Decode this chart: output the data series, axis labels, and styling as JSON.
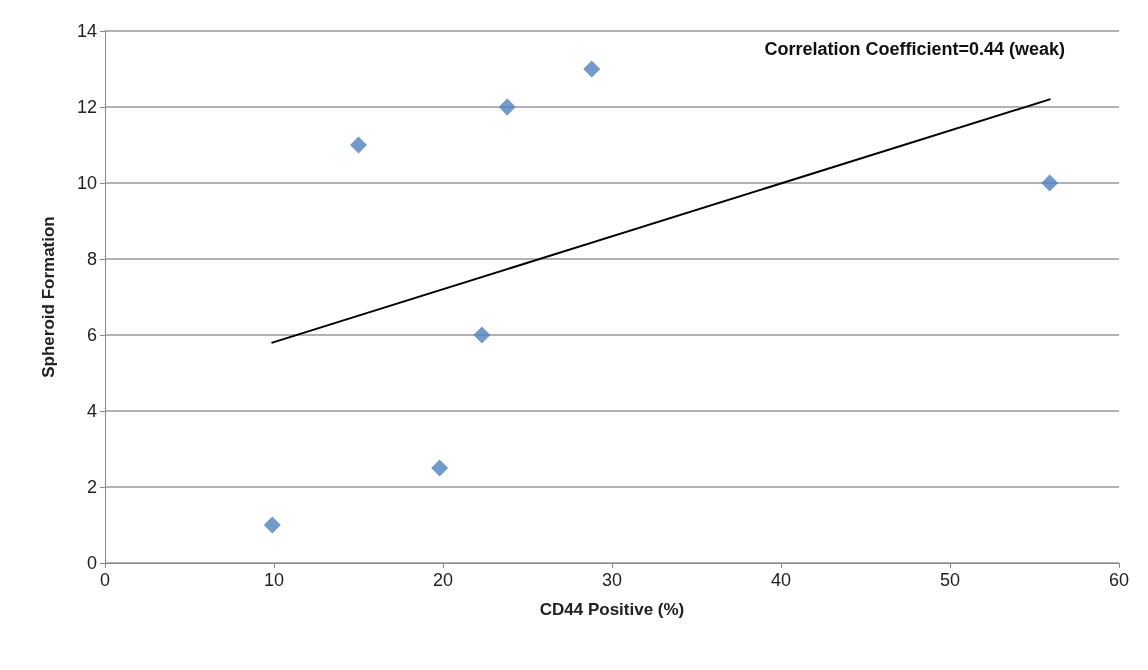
{
  "chart_data": {
    "type": "scatter",
    "xlabel": "CD44 Positive (%)",
    "ylabel": "Spheroid Formation",
    "annotations": [
      "Correlation Coefficient=0.44 (weak)"
    ],
    "xlim": [
      0,
      60
    ],
    "xticks": [
      0,
      10,
      20,
      30,
      40,
      50,
      60
    ],
    "ylim": [
      0,
      14
    ],
    "yticks": [
      0,
      2,
      4,
      6,
      8,
      10,
      12,
      14
    ],
    "grid": "y",
    "marker": "diamond",
    "series": [
      {
        "color": "#4f81bd",
        "x": [
          9.9,
          15,
          19.8,
          22.3,
          23.8,
          28.8,
          55.9
        ],
        "values": [
          1,
          11,
          2.5,
          6,
          12,
          13,
          10
        ]
      },
      {
        "type": "line",
        "color": "#000000",
        "x": [
          9.9,
          55.9
        ],
        "values": [
          5.8,
          12.2
        ],
        "marker": "none",
        "line_style": "solid"
      }
    ]
  }
}
